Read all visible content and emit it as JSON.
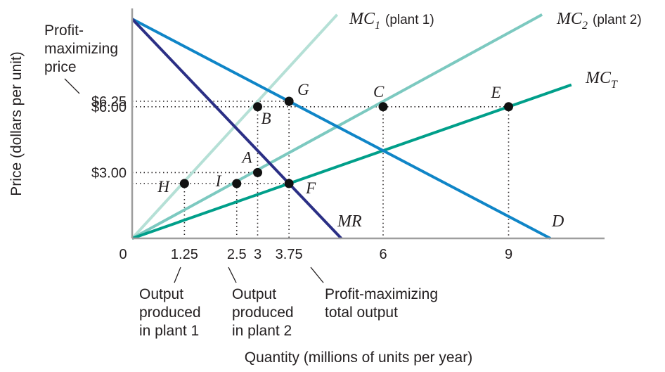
{
  "chart_data": {
    "type": "line",
    "xlabel": "Quantity (millions of units per year)",
    "ylabel": "Price (dollars per unit)",
    "xlim": [
      0,
      11
    ],
    "ylim": [
      0,
      10
    ],
    "origin_label": "0",
    "x_ticks": [
      {
        "value": 1.25,
        "label": "1.25"
      },
      {
        "value": 2.5,
        "label": "2.5"
      },
      {
        "value": 3,
        "label": "3"
      },
      {
        "value": 3.75,
        "label": "3.75"
      },
      {
        "value": 6,
        "label": "6"
      },
      {
        "value": 9,
        "label": "9"
      }
    ],
    "y_ticks": [
      {
        "value": 6.25,
        "label": "$6.25"
      },
      {
        "value": 6.0,
        "label": "$6.00"
      },
      {
        "value": 3.0,
        "label": "$3.00"
      }
    ],
    "series": [
      {
        "name": "MC1",
        "label_main": "MC",
        "label_sub": "1",
        "label_note": "(plant 1)",
        "color": "#b5e0d6",
        "points": [
          [
            0,
            0
          ],
          [
            4.9,
            10.2
          ]
        ]
      },
      {
        "name": "MC2",
        "label_main": "MC",
        "label_sub": "2",
        "label_note": "(plant 2)",
        "color": "#7cc9c0",
        "points": [
          [
            0,
            0
          ],
          [
            9.8,
            10.2
          ]
        ]
      },
      {
        "name": "MCT",
        "label_main": "MC",
        "label_sub": "T",
        "label_note": "",
        "color": "#009f8a",
        "points": [
          [
            0,
            0
          ],
          [
            10.5,
            7.0
          ]
        ]
      },
      {
        "name": "D",
        "label_main": "D",
        "label_sub": "",
        "label_note": "",
        "color": "#0f85c7",
        "points": [
          [
            0,
            10
          ],
          [
            10,
            0
          ]
        ]
      },
      {
        "name": "MR",
        "label_main": "MR",
        "label_sub": "",
        "label_note": "",
        "color": "#2b2f85",
        "points": [
          [
            0,
            10
          ],
          [
            5,
            0
          ]
        ]
      }
    ],
    "points": [
      {
        "label": "G",
        "x": 3.75,
        "y": 6.25
      },
      {
        "label": "B",
        "x": 3,
        "y": 6.0
      },
      {
        "label": "C",
        "x": 6,
        "y": 6.0
      },
      {
        "label": "E",
        "x": 9,
        "y": 6.0
      },
      {
        "label": "A",
        "x": 3,
        "y": 3.0
      },
      {
        "label": "H",
        "x": 1.25,
        "y": 2.5
      },
      {
        "label": "I",
        "x": 2.5,
        "y": 2.5
      },
      {
        "label": "F",
        "x": 3.75,
        "y": 2.5
      }
    ],
    "annotations": {
      "price_line1": "Profit-",
      "price_line2": "maximizing",
      "price_line3": "price",
      "plant1_line1": "Output",
      "plant1_line2": "produced",
      "plant1_line3": "in plant 1",
      "plant2_line1": "Output",
      "plant2_line2": "produced",
      "plant2_line3": "in plant 2",
      "total_line1": "Profit-maximizing",
      "total_line2": "total output"
    }
  }
}
